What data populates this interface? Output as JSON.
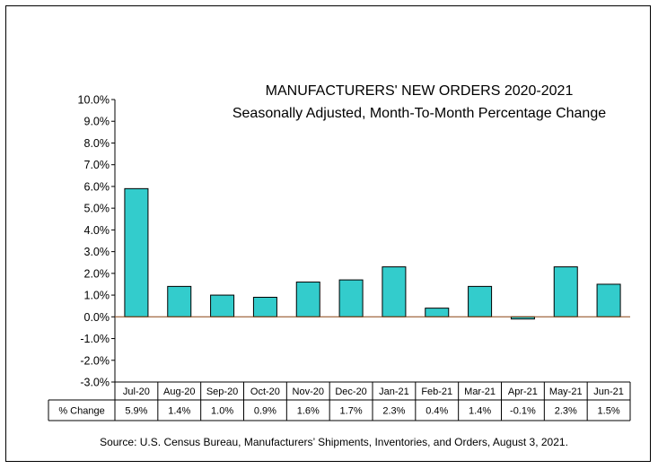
{
  "chart_data": {
    "type": "bar",
    "title": "MANUFACTURERS' NEW ORDERS 2020-2021",
    "subtitle": "Seasonally Adjusted,  Month-To-Month Percentage Change",
    "categories": [
      "Jul-20",
      "Aug-20",
      "Sep-20",
      "Oct-20",
      "Nov-20",
      "Dec-20",
      "Jan-21",
      "Feb-21",
      "Mar-21",
      "Apr-21",
      "May-21",
      "Jun-21"
    ],
    "series": [
      {
        "name": "% Change",
        "values": [
          5.9,
          1.4,
          1.0,
          0.9,
          1.6,
          1.7,
          2.3,
          0.4,
          1.4,
          -0.1,
          2.3,
          1.5
        ]
      }
    ],
    "table_values": [
      "5.9%",
      "1.4%",
      "1.0%",
      "0.9%",
      "1.6%",
      "1.7%",
      "2.3%",
      "0.4%",
      "1.4%",
      "-0.1%",
      "2.3%",
      "1.5%"
    ],
    "yticks": [
      "10.0%",
      "9.0%",
      "8.0%",
      "7.0%",
      "6.0%",
      "5.0%",
      "4.0%",
      "3.0%",
      "2.0%",
      "1.0%",
      "0.0%",
      "-1.0%",
      "-2.0%",
      "-3.0%"
    ],
    "ylim": [
      -3,
      10
    ],
    "bar_color": "#33CCCC",
    "zero_line_color": "#8B4513",
    "source": "Source: U.S. Census Bureau, Manufacturers’ Shipments, Inventories, and Orders, August 3, 2021."
  }
}
